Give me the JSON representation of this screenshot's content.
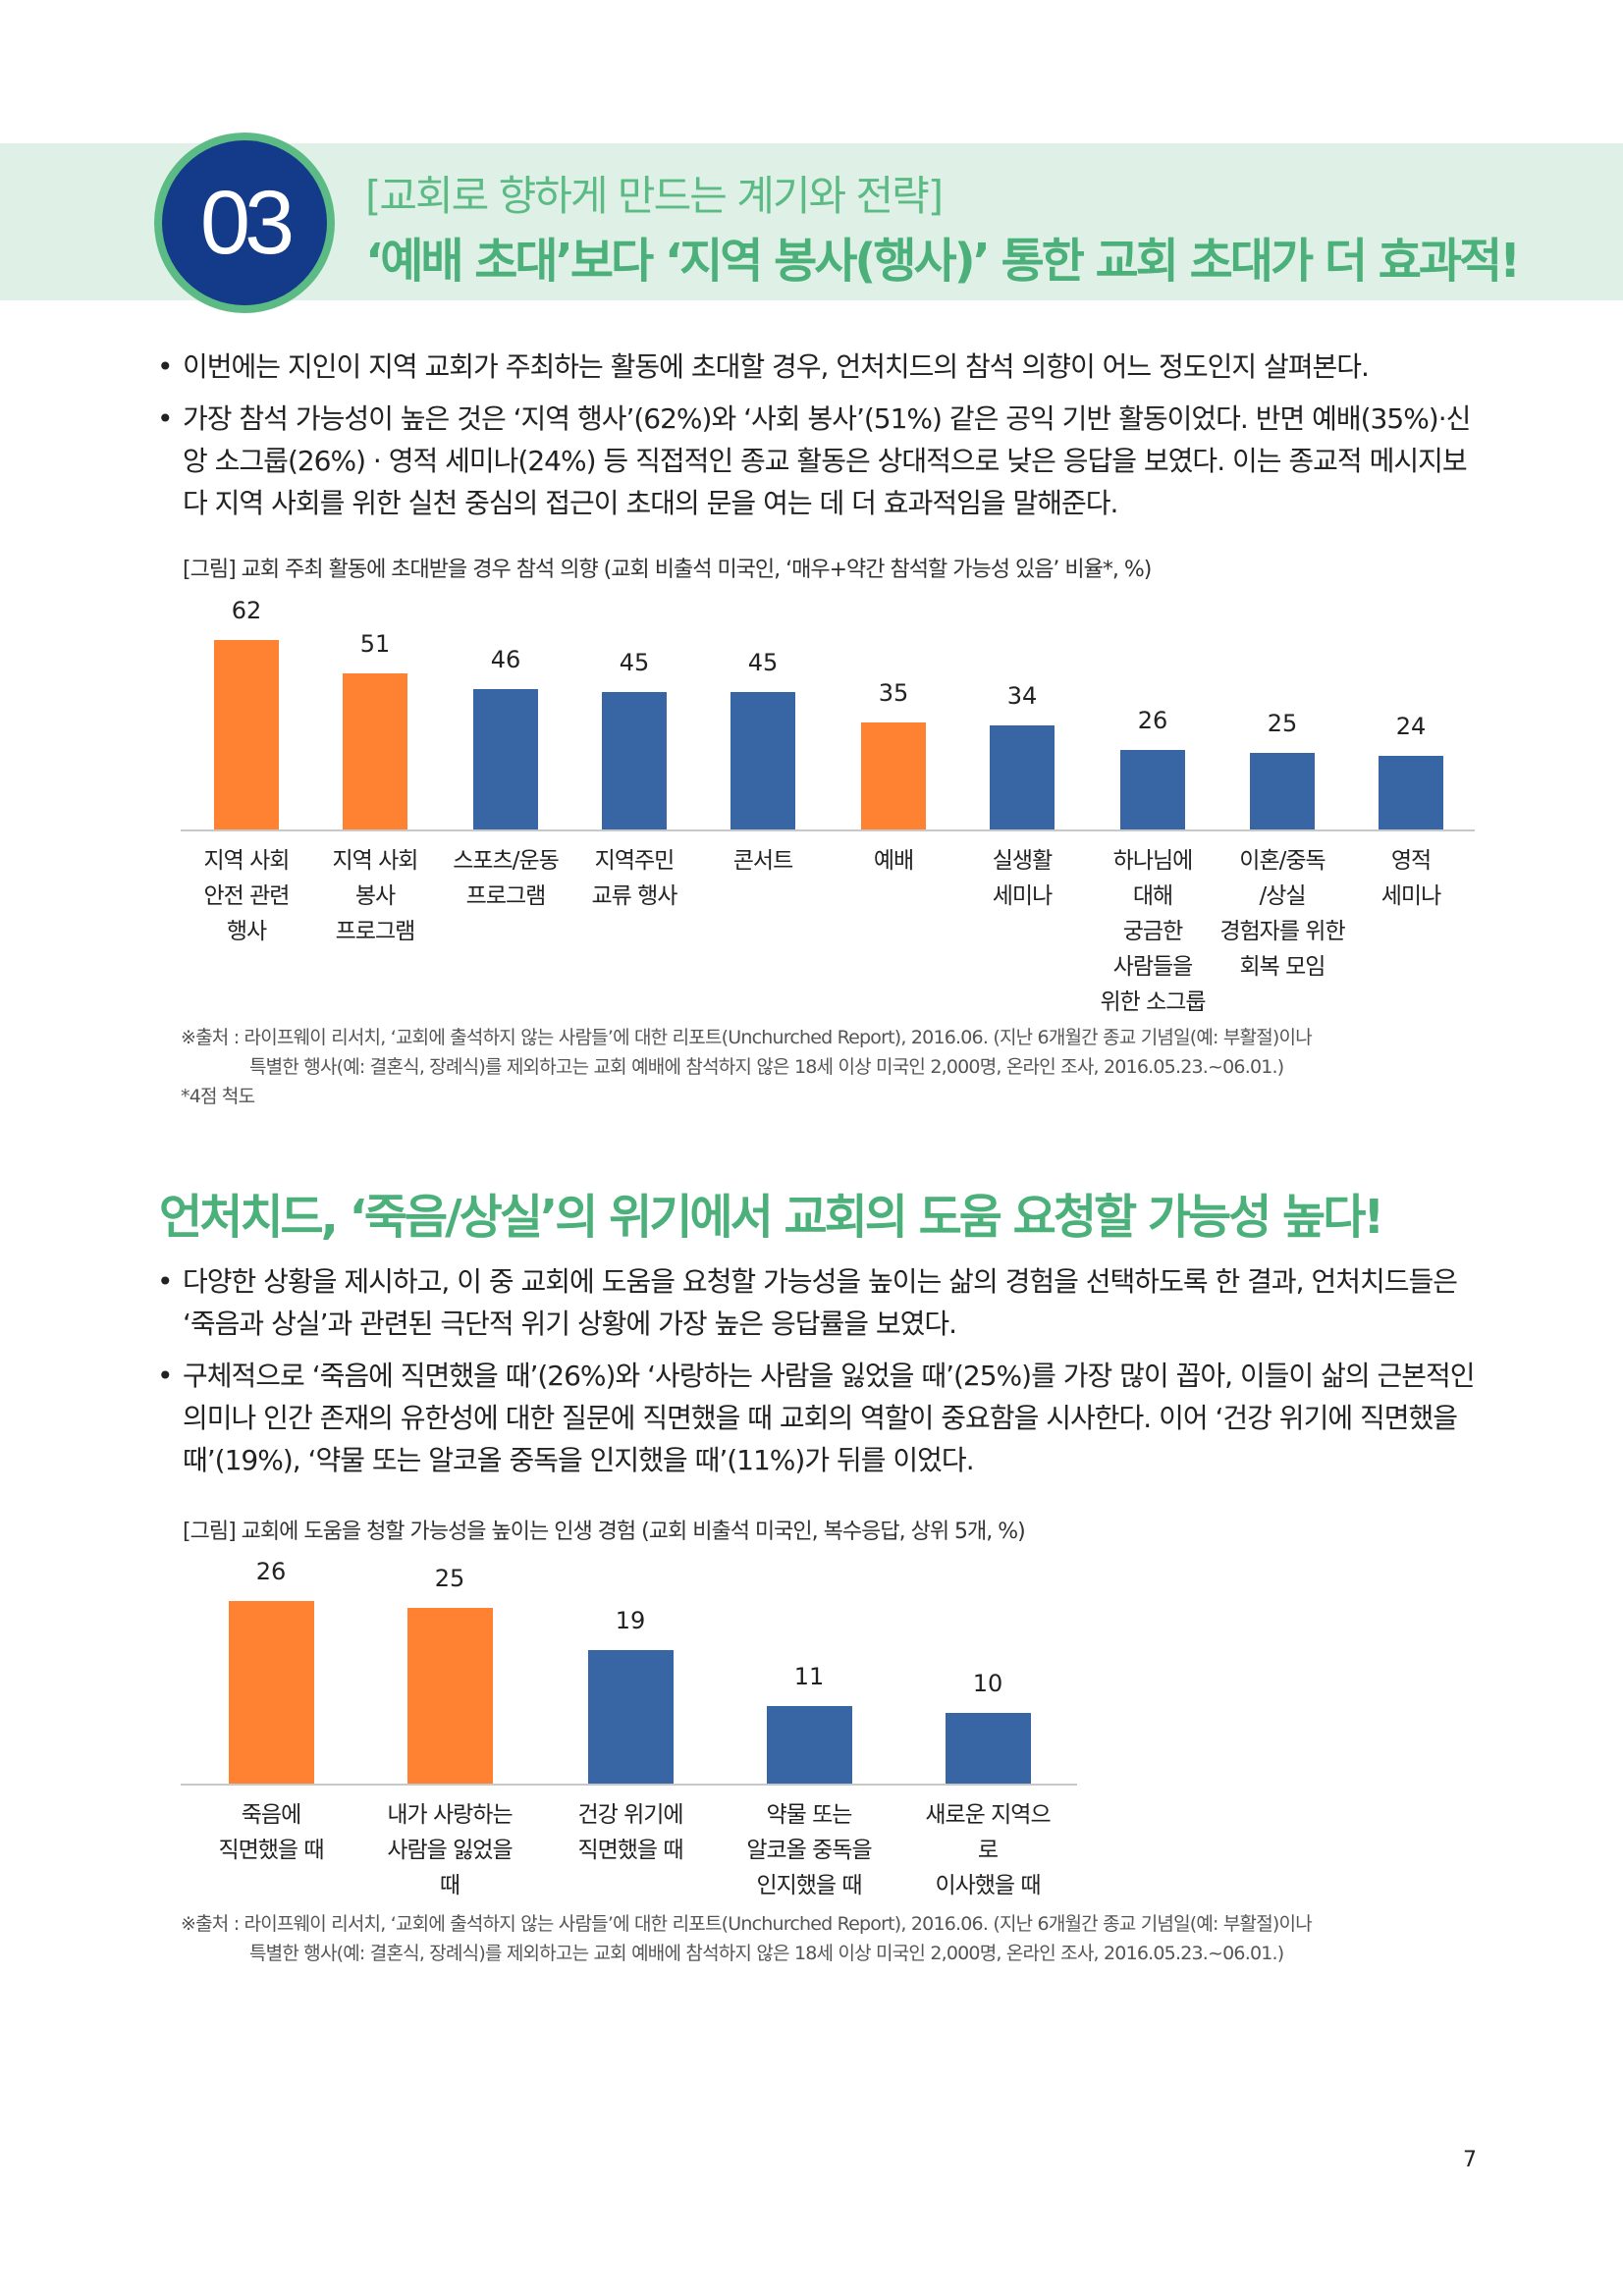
{
  "section": {
    "number": "03",
    "subtitle": "[교회로 향하게 만드는 계기와 전략]",
    "title": "‘예배 초대’보다 ‘지역 봉사(행사)’ 통한 교회 초대가 더 효과적!"
  },
  "bullets1": [
    "이번에는 지인이 지역 교회가 주최하는 활동에 초대할 경우, 언처치드의 참석 의향이 어느 정도인지 살펴본다.",
    "가장 참석 가능성이 높은 것은 ‘지역 행사’(62%)와 ‘사회 봉사’(51%) 같은 공익 기반 활동이었다. 반면 예배(35%)·신앙 소그룹(26%) · 영적 세미나(24%) 등 직접적인 종교 활동은 상대적으로 낮은 응답을 보였다. 이는 종교적 메시지보다 지역 사회를 위한 실천 중심의 접근이 초대의 문을 여는 데 더 효과적임을 말해준다."
  ],
  "chart1_caption": "[그림] 교회 주최 활동에 초대받을 경우 참석 의향 (교회 비출석 미국인, ‘매우+약간 참석할 가능성 있음’ 비율*, %)",
  "chart1_source": [
    "※출처 : 라이프웨이 리서치, ‘교회에 출석하지 않는 사람들’에 대한 리포트(Unchurched Report), 2016.06. (지난 6개월간 종교 기념일(예: 부활절)이나",
    "특별한 행사(예: 결혼식, 장례식)를 제외하고는 교회 예배에 참석하지 않은 18세 이상 미국인 2,000명, 온라인 조사, 2016.05.23.~06.01.)",
    "*4점 척도"
  ],
  "heading2": "언처치드, ‘죽음/상실’의 위기에서 교회의 도움 요청할 가능성 높다!",
  "bullets2": [
    "다양한 상황을 제시하고, 이 중 교회에 도움을 요청할 가능성을 높이는 삶의 경험을 선택하도록 한 결과, 언처치드들은 ‘죽음과 상실’과 관련된 극단적 위기 상황에 가장 높은 응답률을 보였다.",
    "구체적으로 ‘죽음에 직면했을 때’(26%)와 ‘사랑하는 사람을 잃었을 때’(25%)를 가장 많이 꼽아, 이들이 삶의 근본적인 의미나 인간 존재의 유한성에 대한 질문에 직면했을 때 교회의 역할이 중요함을 시사한다. 이어 ‘건강 위기에 직면했을 때’(19%), ‘약물 또는 알코올 중독을 인지했을 때’(11%)가 뒤를 이었다."
  ],
  "chart2_caption": "[그림] 교회에 도움을 청할 가능성을 높이는 인생 경험 (교회 비출석 미국인, 복수응답, 상위 5개, %)",
  "chart2_source": [
    "※출처 : 라이프웨이 리서치, ‘교회에 출석하지 않는 사람들’에 대한 리포트(Unchurched Report), 2016.06. (지난 6개월간 종교 기념일(예: 부활절)이나",
    "특별한 행사(예: 결혼식, 장례식)를 제외하고는 교회 예배에 참석하지 않은 18세 이상 미국인 2,000명, 온라인 조사, 2016.05.23.~06.01.)"
  ],
  "page_number": "7",
  "colors": {
    "highlight": "#fe8232",
    "default": "#3865a3",
    "accent_green": "#4bb07a",
    "navy": "#143a8a"
  },
  "chart_data": [
    {
      "type": "bar",
      "categories": [
        [
          "지역 사회",
          "안전 관련",
          "행사"
        ],
        [
          "지역 사회",
          "봉사",
          "프로그램"
        ],
        [
          "스포츠/운동",
          "프로그램"
        ],
        [
          "지역주민",
          "교류 행사"
        ],
        [
          "콘서트"
        ],
        [
          "예배"
        ],
        [
          "실생활",
          "세미나"
        ],
        [
          "하나님에",
          "대해",
          "궁금한",
          "사람들을",
          "위한 소그룹"
        ],
        [
          "이혼/중독",
          "/상실",
          "경험자를 위한",
          "회복 모임"
        ],
        [
          "영적",
          "세미나"
        ]
      ],
      "values": [
        62,
        51,
        46,
        45,
        45,
        35,
        34,
        26,
        25,
        24
      ],
      "highlighted": [
        true,
        true,
        false,
        false,
        false,
        true,
        false,
        false,
        false,
        false
      ],
      "ylim": [
        0,
        62
      ]
    },
    {
      "type": "bar",
      "categories": [
        [
          "죽음에",
          "직면했을 때"
        ],
        [
          "내가 사랑하는",
          "사람을 잃었을 때"
        ],
        [
          "건강 위기에",
          "직면했을 때"
        ],
        [
          "약물 또는",
          "알코올 중독을",
          "인지했을 때"
        ],
        [
          "새로운 지역으로",
          "이사했을 때"
        ]
      ],
      "values": [
        26,
        25,
        19,
        11,
        10
      ],
      "highlighted": [
        true,
        true,
        false,
        false,
        false
      ],
      "ylim": [
        0,
        26
      ]
    }
  ]
}
